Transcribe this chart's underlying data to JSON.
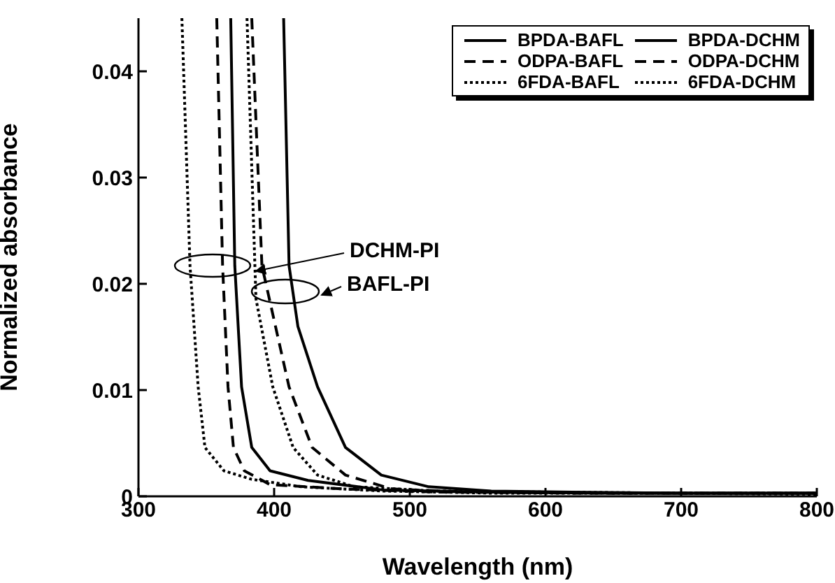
{
  "chart_data": {
    "type": "line",
    "xlabel": "Wavelength (nm)",
    "ylabel": "Normalized absorbance",
    "xlim": [
      300,
      800
    ],
    "xticks": [
      300,
      400,
      500,
      600,
      700,
      800
    ],
    "ylim": [
      0,
      0.045
    ],
    "yticks": [
      0,
      0.01,
      0.02,
      0.03,
      0.04
    ],
    "grid": false,
    "legend": "top right",
    "marker": "none",
    "annotations": [
      {
        "text": "DCHM-PI",
        "x": 386.6,
        "y": 0.0212
      },
      "BAFL-PI"
    ],
    "series": [
      {
        "name": "BPDA-BAFL",
        "color": "#000000",
        "line_style": "solid",
        "x": [
          407,
          411,
          417.5,
          432,
          452.6,
          479,
          514,
          560,
          620,
          700,
          800
        ],
        "values": [
          0.045,
          0.0217,
          0.016,
          0.0103,
          0.0046,
          0.002,
          0.0009,
          0.0005,
          0.0004,
          0.0003,
          0.0003
        ]
      },
      {
        "name": "BPDA-DCHM",
        "color": "#000000",
        "line_style": "solid",
        "x": [
          368,
          371,
          376,
          383.5,
          397,
          425,
          480,
          560,
          650,
          800
        ],
        "values": [
          0.045,
          0.0217,
          0.0103,
          0.0046,
          0.0024,
          0.0015,
          0.0006,
          0.0004,
          0.0003,
          0.0003
        ]
      },
      {
        "name": "ODPA-BAFL",
        "color": "#000000",
        "line_style": "dashed",
        "x": [
          383.5,
          391,
          411,
          428,
          452.6,
          486.6,
          540,
          620,
          700,
          800
        ],
        "values": [
          0.045,
          0.0217,
          0.0103,
          0.0046,
          0.002,
          0.0007,
          0.0004,
          0.0003,
          0.0003,
          0.0003
        ]
      },
      {
        "name": "ODPA-DCHM",
        "color": "#000000",
        "line_style": "dashed",
        "x": [
          357.7,
          362,
          366,
          370,
          378,
          397,
          450,
          520,
          650,
          800
        ],
        "values": [
          0.045,
          0.0217,
          0.0103,
          0.0046,
          0.0024,
          0.0011,
          0.0007,
          0.0004,
          0.0003,
          0.0003
        ]
      },
      {
        "name": "6FDA-BAFL",
        "color": "#000000",
        "line_style": "dotted",
        "x": [
          380,
          386.6,
          399,
          414,
          432,
          459,
          520,
          600,
          700,
          800
        ],
        "values": [
          0.045,
          0.0186,
          0.0103,
          0.0046,
          0.002,
          0.0009,
          0.0005,
          0.0004,
          0.0003,
          0.0003
        ]
      },
      {
        "name": "6FDA-DCHM",
        "color": "#000000",
        "line_style": "dotted",
        "x": [
          332,
          338,
          344,
          349,
          363,
          383.5,
          420,
          480,
          560,
          680,
          800
        ],
        "values": [
          0.045,
          0.0217,
          0.0103,
          0.0046,
          0.0024,
          0.0016,
          0.0009,
          0.0005,
          0.0003,
          0.0003,
          0.0002
        ]
      }
    ]
  }
}
